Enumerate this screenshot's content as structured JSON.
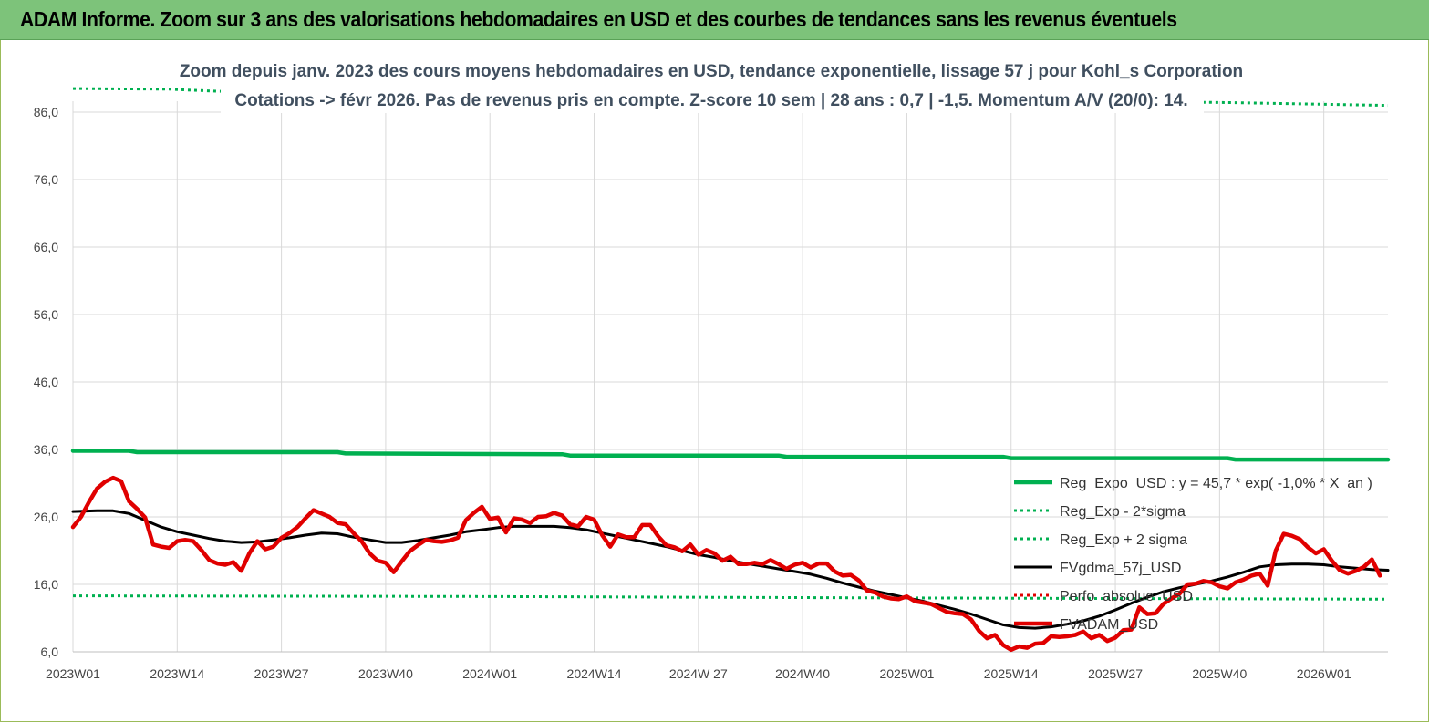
{
  "banner": {
    "title": "ADAM Informe. Zoom sur 3 ans des valorisations hebdomadaires en USD et des courbes de tendances sans les revenus éventuels"
  },
  "colors": {
    "banner_bg": "#7dc37a",
    "reg_expo": "#00b050",
    "fvgdma": "#000000",
    "fvadam": "#e00000",
    "perfo": "#e00000",
    "grid": "#d9d9d9"
  },
  "chart_data": {
    "type": "line",
    "title": "Zoom depuis janv. 2023 des cours moyens hebdomadaires en USD, tendance exponentielle, lissage 57 j pour Kohl_s Corporation",
    "subtitle": "Cotations -> févr 2026.  Pas de revenus pris en compte. Z-score 10 sem | 28 ans : 0,7 | -1,5. Momentum A/V (20/0): 14.",
    "ylim": [
      6,
      86
    ],
    "yticks": [
      "6,0",
      "16,0",
      "26,0",
      "36,0",
      "46,0",
      "56,0",
      "66,0",
      "76,0",
      "86,0"
    ],
    "yvalues": [
      6,
      16,
      26,
      36,
      46,
      56,
      66,
      76,
      86
    ],
    "xlim": [
      0,
      164
    ],
    "xticks": [
      "2023W01",
      "2023W14",
      "2023W27",
      "2023W40",
      "2024W01",
      "2024W14",
      "2024W 27",
      "2024W40",
      "2025W01",
      "2025W14",
      "2025W27",
      "2025W40",
      "2026W01"
    ],
    "xtick_index": [
      0,
      13,
      26,
      39,
      52,
      65,
      78,
      91,
      104,
      117,
      130,
      143,
      156
    ],
    "grid": true,
    "legend_position": "right",
    "series": [
      {
        "name": "Reg_Expo_USD : y = 45,7 * exp( -1,0% *  X_an )",
        "style": "solid-thick",
        "color": "#00b050",
        "points": [
          [
            0,
            35.8
          ],
          [
            7,
            35.8
          ],
          [
            8,
            35.6
          ],
          [
            33,
            35.6
          ],
          [
            34,
            35.4
          ],
          [
            61,
            35.3
          ],
          [
            62,
            35.1
          ],
          [
            88,
            35.1
          ],
          [
            89,
            34.9
          ],
          [
            116,
            34.9
          ],
          [
            117,
            34.7
          ],
          [
            144,
            34.7
          ],
          [
            145,
            34.5
          ],
          [
            164,
            34.5
          ]
        ]
      },
      {
        "name": "Reg_Exp - 2*sigma",
        "style": "dotted",
        "color": "#00b050",
        "points": [
          [
            0,
            14.3
          ],
          [
            50,
            14.2
          ],
          [
            100,
            14.0
          ],
          [
            130,
            13.9
          ],
          [
            164,
            13.8
          ]
        ]
      },
      {
        "name": "Reg_Exp + 2 sigma",
        "style": "dotted",
        "color": "#00b050",
        "points": [
          [
            0,
            89.5
          ],
          [
            12,
            89.4
          ],
          [
            18,
            89.1
          ],
          [
            145,
            87.4
          ],
          [
            164,
            87.0
          ]
        ]
      },
      {
        "name": "FVgdma_57j_USD",
        "style": "solid",
        "color": "#000000",
        "points": [
          [
            0,
            26.8
          ],
          [
            3,
            26.9
          ],
          [
            5,
            26.9
          ],
          [
            7,
            26.5
          ],
          [
            9,
            25.5
          ],
          [
            11,
            24.5
          ],
          [
            13,
            23.8
          ],
          [
            15,
            23.3
          ],
          [
            17,
            22.8
          ],
          [
            19,
            22.4
          ],
          [
            21,
            22.2
          ],
          [
            23,
            22.3
          ],
          [
            25,
            22.6
          ],
          [
            27,
            22.9
          ],
          [
            29,
            23.3
          ],
          [
            31,
            23.6
          ],
          [
            33,
            23.5
          ],
          [
            35,
            23.0
          ],
          [
            37,
            22.6
          ],
          [
            39,
            22.2
          ],
          [
            41,
            22.2
          ],
          [
            43,
            22.5
          ],
          [
            45,
            22.9
          ],
          [
            47,
            23.3
          ],
          [
            49,
            23.8
          ],
          [
            51,
            24.1
          ],
          [
            53,
            24.4
          ],
          [
            55,
            24.6
          ],
          [
            57,
            24.6
          ],
          [
            60,
            24.6
          ],
          [
            62,
            24.4
          ],
          [
            64,
            24.1
          ],
          [
            66,
            23.6
          ],
          [
            68,
            23.1
          ],
          [
            70,
            22.6
          ],
          [
            72,
            22.1
          ],
          [
            74,
            21.6
          ],
          [
            76,
            21.0
          ],
          [
            78,
            20.4
          ],
          [
            80,
            20.0
          ],
          [
            82,
            19.5
          ],
          [
            84,
            19.1
          ],
          [
            86,
            18.7
          ],
          [
            88,
            18.3
          ],
          [
            90,
            17.9
          ],
          [
            92,
            17.5
          ],
          [
            94,
            16.9
          ],
          [
            96,
            16.2
          ],
          [
            98,
            15.6
          ],
          [
            100,
            15.0
          ],
          [
            102,
            14.5
          ],
          [
            104,
            14.0
          ],
          [
            106,
            13.5
          ],
          [
            108,
            12.9
          ],
          [
            110,
            12.3
          ],
          [
            112,
            11.6
          ],
          [
            114,
            10.8
          ],
          [
            116,
            10.0
          ],
          [
            118,
            9.6
          ],
          [
            120,
            9.5
          ],
          [
            122,
            9.7
          ],
          [
            124,
            10.1
          ],
          [
            126,
            10.6
          ],
          [
            128,
            11.3
          ],
          [
            130,
            12.2
          ],
          [
            132,
            13.2
          ],
          [
            134,
            14.1
          ],
          [
            136,
            14.9
          ],
          [
            138,
            15.5
          ],
          [
            140,
            16.0
          ],
          [
            142,
            16.5
          ],
          [
            144,
            17.1
          ],
          [
            146,
            17.8
          ],
          [
            148,
            18.6
          ],
          [
            150,
            18.9
          ],
          [
            152,
            19.0
          ],
          [
            154,
            19.0
          ],
          [
            156,
            18.9
          ],
          [
            158,
            18.6
          ],
          [
            160,
            18.4
          ],
          [
            162,
            18.2
          ],
          [
            164,
            18.1
          ]
        ]
      },
      {
        "name": "Perfo_absolue_USD",
        "style": "dotted",
        "color": "#e00000",
        "points": []
      },
      {
        "name": "FVADAM_USD",
        "style": "solid-thick",
        "color": "#e00000",
        "points": [
          [
            0,
            24.5
          ],
          [
            1,
            26.0
          ],
          [
            2,
            28.2
          ],
          [
            3,
            30.2
          ],
          [
            4,
            31.2
          ],
          [
            5,
            31.8
          ],
          [
            6,
            31.3
          ],
          [
            7,
            28.3
          ],
          [
            8,
            27.2
          ],
          [
            9,
            25.9
          ],
          [
            10,
            21.9
          ],
          [
            11,
            21.6
          ],
          [
            12,
            21.4
          ],
          [
            13,
            22.4
          ],
          [
            14,
            22.6
          ],
          [
            15,
            22.4
          ],
          [
            16,
            21.1
          ],
          [
            17,
            19.6
          ],
          [
            18,
            19.1
          ],
          [
            19,
            18.9
          ],
          [
            20,
            19.3
          ],
          [
            21,
            18.0
          ],
          [
            22,
            20.6
          ],
          [
            23,
            22.4
          ],
          [
            24,
            21.2
          ],
          [
            25,
            21.6
          ],
          [
            26,
            22.9
          ],
          [
            27,
            23.6
          ],
          [
            28,
            24.5
          ],
          [
            29,
            25.8
          ],
          [
            30,
            27.0
          ],
          [
            31,
            26.5
          ],
          [
            32,
            26.0
          ],
          [
            33,
            25.1
          ],
          [
            34,
            24.9
          ],
          [
            35,
            23.6
          ],
          [
            36,
            22.4
          ],
          [
            37,
            20.6
          ],
          [
            38,
            19.5
          ],
          [
            39,
            19.2
          ],
          [
            40,
            17.8
          ],
          [
            41,
            19.4
          ],
          [
            42,
            20.9
          ],
          [
            43,
            21.8
          ],
          [
            44,
            22.6
          ],
          [
            45,
            22.4
          ],
          [
            46,
            22.3
          ],
          [
            47,
            22.5
          ],
          [
            48,
            22.9
          ],
          [
            49,
            25.5
          ],
          [
            50,
            26.6
          ],
          [
            51,
            27.5
          ],
          [
            52,
            25.7
          ],
          [
            53,
            25.9
          ],
          [
            54,
            23.7
          ],
          [
            55,
            25.8
          ],
          [
            56,
            25.6
          ],
          [
            57,
            25.1
          ],
          [
            58,
            26.0
          ],
          [
            59,
            26.1
          ],
          [
            60,
            26.6
          ],
          [
            61,
            26.2
          ],
          [
            62,
            24.9
          ],
          [
            63,
            24.6
          ],
          [
            64,
            26.0
          ],
          [
            65,
            25.6
          ],
          [
            66,
            23.3
          ],
          [
            67,
            21.6
          ],
          [
            68,
            23.4
          ],
          [
            69,
            23.0
          ],
          [
            70,
            23.0
          ],
          [
            71,
            24.8
          ],
          [
            72,
            24.8
          ],
          [
            73,
            23.1
          ],
          [
            74,
            21.8
          ],
          [
            75,
            21.5
          ],
          [
            76,
            20.9
          ],
          [
            77,
            21.9
          ],
          [
            78,
            20.4
          ],
          [
            79,
            21.1
          ],
          [
            80,
            20.6
          ],
          [
            81,
            19.5
          ],
          [
            82,
            20.1
          ],
          [
            83,
            19.0
          ],
          [
            84,
            19.0
          ],
          [
            85,
            19.2
          ],
          [
            86,
            19.0
          ],
          [
            87,
            19.6
          ],
          [
            88,
            19.0
          ],
          [
            89,
            18.3
          ],
          [
            90,
            18.9
          ],
          [
            91,
            19.2
          ],
          [
            92,
            18.5
          ],
          [
            93,
            19.1
          ],
          [
            94,
            19.1
          ],
          [
            95,
            17.9
          ],
          [
            96,
            17.3
          ],
          [
            97,
            17.4
          ],
          [
            98,
            16.6
          ],
          [
            99,
            15.1
          ],
          [
            100,
            14.8
          ],
          [
            101,
            14.2
          ],
          [
            102,
            13.9
          ],
          [
            103,
            13.8
          ],
          [
            104,
            14.2
          ],
          [
            105,
            13.5
          ],
          [
            106,
            13.3
          ],
          [
            107,
            13.1
          ],
          [
            108,
            12.5
          ],
          [
            109,
            11.9
          ],
          [
            110,
            11.7
          ],
          [
            111,
            11.6
          ],
          [
            112,
            10.8
          ],
          [
            113,
            9.1
          ],
          [
            114,
            8.0
          ],
          [
            115,
            8.5
          ],
          [
            116,
            7.0
          ],
          [
            117,
            6.3
          ],
          [
            118,
            6.8
          ],
          [
            119,
            6.6
          ],
          [
            120,
            7.2
          ],
          [
            121,
            7.3
          ],
          [
            122,
            8.3
          ],
          [
            123,
            8.2
          ],
          [
            124,
            8.3
          ],
          [
            125,
            8.5
          ],
          [
            126,
            9.0
          ],
          [
            127,
            8.0
          ],
          [
            128,
            8.5
          ],
          [
            129,
            7.6
          ],
          [
            130,
            8.1
          ],
          [
            131,
            9.2
          ],
          [
            132,
            9.3
          ],
          [
            133,
            12.6
          ],
          [
            134,
            11.6
          ],
          [
            135,
            11.7
          ],
          [
            136,
            13.1
          ],
          [
            137,
            13.9
          ],
          [
            138,
            14.6
          ],
          [
            139,
            16.0
          ],
          [
            140,
            16.1
          ],
          [
            141,
            16.5
          ],
          [
            142,
            16.3
          ],
          [
            143,
            15.7
          ],
          [
            144,
            15.4
          ],
          [
            145,
            16.3
          ],
          [
            146,
            16.7
          ],
          [
            147,
            17.3
          ],
          [
            148,
            17.6
          ],
          [
            149,
            15.8
          ],
          [
            150,
            21.0
          ],
          [
            151,
            23.5
          ],
          [
            152,
            23.2
          ],
          [
            153,
            22.7
          ],
          [
            154,
            21.5
          ],
          [
            155,
            20.6
          ],
          [
            156,
            21.2
          ],
          [
            157,
            19.5
          ],
          [
            158,
            18.1
          ],
          [
            159,
            17.6
          ],
          [
            160,
            18.0
          ],
          [
            161,
            18.6
          ],
          [
            162,
            19.7
          ],
          [
            163,
            17.3
          ]
        ]
      }
    ]
  }
}
